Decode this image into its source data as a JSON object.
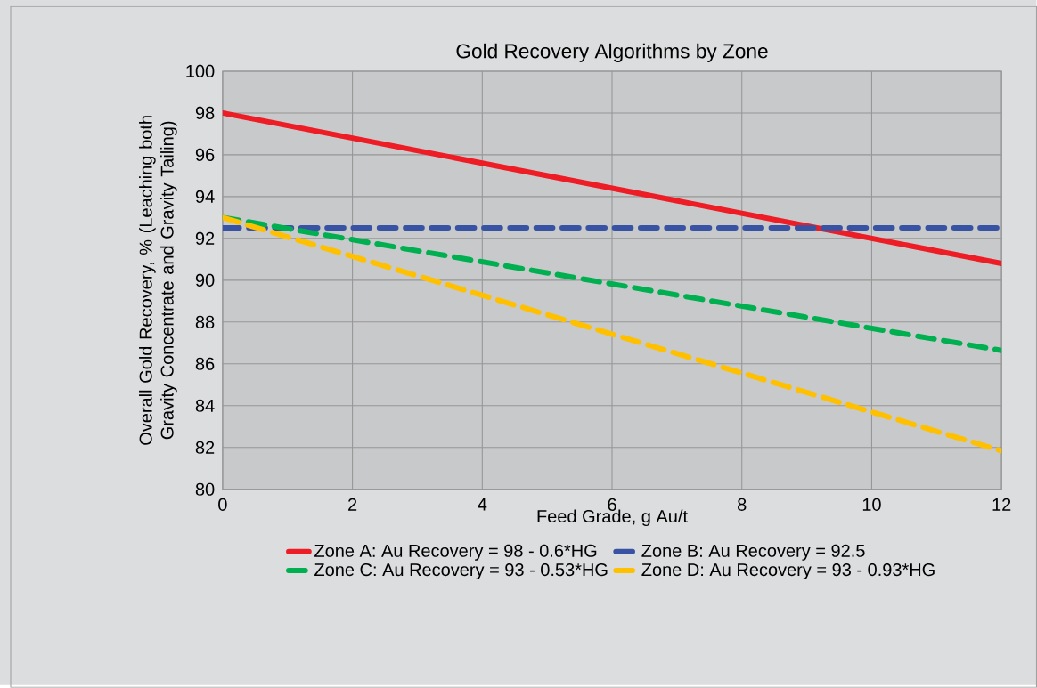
{
  "chart_data": {
    "type": "line",
    "title": "Gold Recovery Algorithms by Zone",
    "xlabel": "Feed Grade, g Au/t",
    "ylabel": "Overall Gold Recovery, % (Leaching both Gravity Concentrate and Gravity Tailing)",
    "x": [
      0,
      12
    ],
    "series": [
      {
        "name": "Zone A:    Au Recovery = 98 - 0.6*HG",
        "color": "#ee1c25",
        "values": [
          98,
          90.8
        ],
        "line_style": "solid"
      },
      {
        "name": "Zone B:   Au Recovery = 92.5",
        "color": "#3953a4",
        "values": [
          92.5,
          92.5
        ],
        "line_style": "dashed"
      },
      {
        "name": "Zone C:   Au Recovery = 93 - 0.53*HG",
        "color": "#00b050",
        "values": [
          93,
          86.64
        ],
        "line_style": "dashed"
      },
      {
        "name": "Zone D:   Au Recovery = 93 - 0.93*HG",
        "color": "#ffc000",
        "values": [
          93,
          81.84
        ],
        "line_style": "dashed"
      }
    ],
    "xlim": [
      0,
      12
    ],
    "ylim": [
      80,
      100
    ],
    "xticks": [
      0,
      2,
      4,
      6,
      8,
      10,
      12
    ],
    "yticks": [
      80,
      82,
      84,
      86,
      88,
      90,
      92,
      94,
      96,
      98,
      100
    ],
    "grid": true,
    "legend": "bottom",
    "marker": "none"
  }
}
